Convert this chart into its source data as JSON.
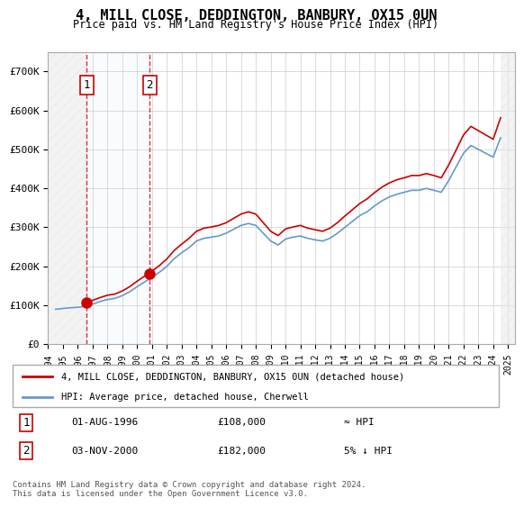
{
  "title": "4, MILL CLOSE, DEDDINGTON, BANBURY, OX15 0UN",
  "subtitle": "Price paid vs. HM Land Registry's House Price Index (HPI)",
  "property_label": "4, MILL CLOSE, DEDDINGTON, BANBURY, OX15 0UN (detached house)",
  "hpi_label": "HPI: Average price, detached house, Cherwell",
  "transactions": [
    {
      "date": "1996-08-01",
      "price": 108000,
      "label": "1",
      "note": "≈ HPI"
    },
    {
      "date": "2000-11-03",
      "price": 182000,
      "label": "2",
      "note": "5% ↓ HPI"
    }
  ],
  "transaction_dates_display": [
    "01-AUG-1996",
    "03-NOV-2000"
  ],
  "transaction_prices_display": [
    "£108,000",
    "£182,000"
  ],
  "footer": "Contains HM Land Registry data © Crown copyright and database right 2024.\nThis data is licensed under the Open Government Licence v3.0.",
  "ylim": [
    0,
    750000
  ],
  "yticks": [
    0,
    100000,
    200000,
    300000,
    400000,
    500000,
    600000,
    700000
  ],
  "ytick_labels": [
    "£0",
    "£100K",
    "£200K",
    "£300K",
    "£400K",
    "£500K",
    "£600K",
    "£700K"
  ],
  "property_color": "#cc0000",
  "hpi_color": "#6699cc",
  "background_color": "#ffffff",
  "plot_bg_color": "#ffffff",
  "hatch_color": "#cccccc",
  "grid_color": "#cccccc",
  "dashed_line_color": "#cc0000",
  "shade_color": "#ddeeff",
  "hpi_data": {
    "years": [
      1994.5,
      1995.0,
      1995.5,
      1996.0,
      1996.5,
      1997.0,
      1997.5,
      1998.0,
      1998.5,
      1999.0,
      1999.5,
      2000.0,
      2000.5,
      2001.0,
      2001.5,
      2002.0,
      2002.5,
      2003.0,
      2003.5,
      2004.0,
      2004.5,
      2005.0,
      2005.5,
      2006.0,
      2006.5,
      2007.0,
      2007.5,
      2008.0,
      2008.5,
      2009.0,
      2009.5,
      2010.0,
      2010.5,
      2011.0,
      2011.5,
      2012.0,
      2012.5,
      2013.0,
      2013.5,
      2014.0,
      2014.5,
      2015.0,
      2015.5,
      2016.0,
      2016.5,
      2017.0,
      2017.5,
      2018.0,
      2018.5,
      2019.0,
      2019.5,
      2020.0,
      2020.5,
      2021.0,
      2021.5,
      2022.0,
      2022.5,
      2023.0,
      2023.5,
      2024.0,
      2024.5
    ],
    "values": [
      90000,
      92000,
      94000,
      95000,
      98000,
      103000,
      110000,
      115000,
      118000,
      125000,
      135000,
      148000,
      160000,
      172000,
      185000,
      200000,
      220000,
      235000,
      248000,
      265000,
      272000,
      275000,
      278000,
      285000,
      295000,
      305000,
      310000,
      305000,
      285000,
      265000,
      255000,
      270000,
      275000,
      278000,
      272000,
      268000,
      265000,
      272000,
      285000,
      300000,
      315000,
      330000,
      340000,
      355000,
      368000,
      378000,
      385000,
      390000,
      395000,
      395000,
      400000,
      395000,
      390000,
      420000,
      455000,
      490000,
      510000,
      500000,
      490000,
      480000,
      530000
    ]
  },
  "property_hpi_data": {
    "years": [
      1996.6,
      1997.0,
      1997.5,
      1998.0,
      1998.5,
      1999.0,
      1999.5,
      2000.0,
      2000.5,
      2001.0,
      2001.5,
      2002.0,
      2002.5,
      2003.0,
      2003.5,
      2004.0,
      2004.5,
      2005.0,
      2005.5,
      2006.0,
      2006.5,
      2007.0,
      2007.5,
      2008.0,
      2008.5,
      2009.0,
      2009.5,
      2010.0,
      2010.5,
      2011.0,
      2011.5,
      2012.0,
      2012.5,
      2013.0,
      2013.5,
      2014.0,
      2014.5,
      2015.0,
      2015.5,
      2016.0,
      2016.5,
      2017.0,
      2017.5,
      2018.0,
      2018.5,
      2019.0,
      2019.5,
      2020.0,
      2020.5,
      2021.0,
      2021.5,
      2022.0,
      2022.5,
      2023.0,
      2023.5,
      2024.0,
      2024.5
    ],
    "values": [
      108000,
      113000,
      120000,
      126000,
      129000,
      137000,
      148000,
      162000,
      175000,
      188000,
      202000,
      219000,
      241000,
      257000,
      272000,
      290000,
      298000,
      301000,
      305000,
      312000,
      323000,
      334000,
      340000,
      334000,
      312000,
      290000,
      279000,
      296000,
      301000,
      305000,
      298000,
      294000,
      290000,
      298000,
      312000,
      329000,
      345000,
      361000,
      373000,
      389000,
      403000,
      414000,
      422000,
      427000,
      433000,
      433000,
      438000,
      433000,
      427000,
      460000,
      498000,
      537000,
      559000,
      548000,
      537000,
      526000,
      581000
    ]
  },
  "xlim_start": 1994.0,
  "xlim_end": 2025.5,
  "xtick_years": [
    1994,
    1995,
    1996,
    1997,
    1998,
    1999,
    2000,
    2001,
    2002,
    2003,
    2004,
    2005,
    2006,
    2007,
    2008,
    2009,
    2010,
    2011,
    2012,
    2013,
    2014,
    2015,
    2016,
    2017,
    2018,
    2019,
    2020,
    2021,
    2022,
    2023,
    2024,
    2025
  ]
}
